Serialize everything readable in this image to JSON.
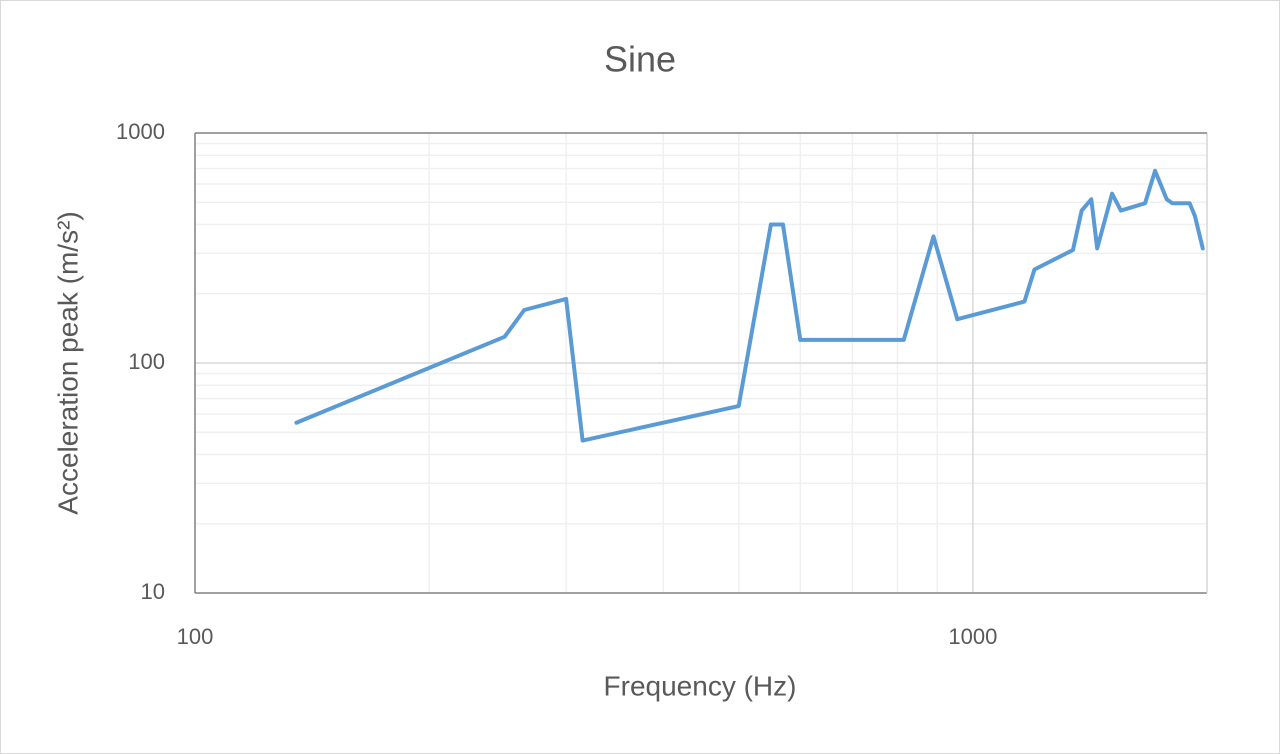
{
  "chart_data": {
    "type": "line",
    "title": "Sine",
    "x_label": "Frequency (Hz)",
    "y_label": "Acceleration peak (m/s²)",
    "x_log": true,
    "y_log": true,
    "grid": true,
    "xlim": [
      100,
      2000
    ],
    "ylim": [
      10,
      1000
    ],
    "xticks": [
      100,
      1000
    ],
    "yticks": [
      10,
      100,
      1000
    ],
    "x_minor_ticks": [
      200,
      300,
      400,
      500,
      600,
      700,
      800,
      900,
      2000
    ],
    "y_minor_ticks": [
      20,
      30,
      40,
      50,
      60,
      70,
      80,
      90,
      200,
      300,
      400,
      500,
      600,
      700,
      800,
      900
    ],
    "series": [
      {
        "name": "Sine",
        "color": "#5b9bd5",
        "x": [
          135,
          250,
          265,
          300,
          315,
          500,
          550,
          570,
          600,
          815,
          890,
          955,
          1165,
          1200,
          1345,
          1380,
          1420,
          1445,
          1510,
          1550,
          1665,
          1715,
          1775,
          1805,
          1900,
          1930,
          1975
        ],
        "values": [
          55,
          130,
          170,
          190,
          46,
          65,
          400,
          400,
          126,
          126,
          355,
          155,
          185,
          255,
          310,
          460,
          515,
          315,
          545,
          460,
          495,
          685,
          515,
          495,
          495,
          435,
          315
        ]
      }
    ]
  }
}
